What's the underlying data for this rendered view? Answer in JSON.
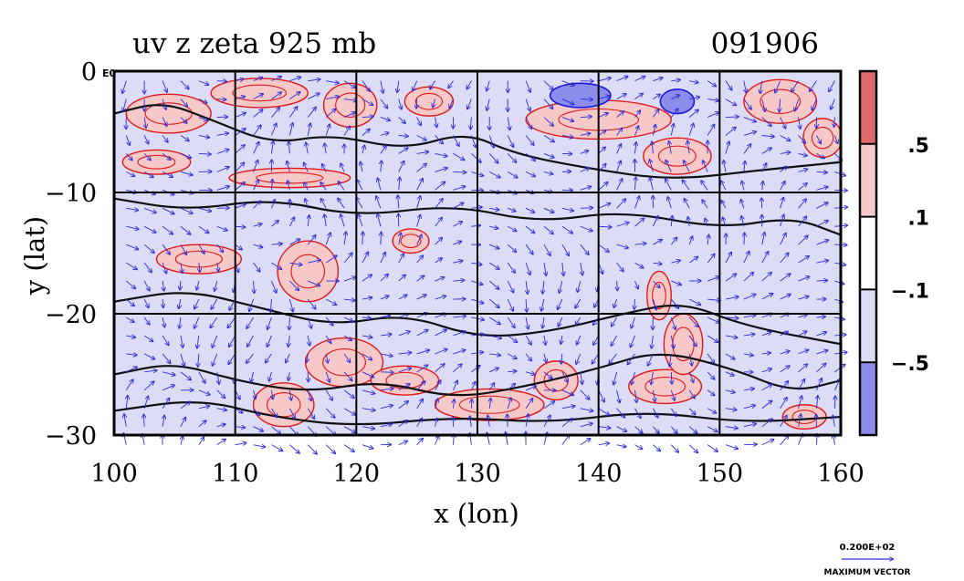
{
  "chart_data": {
    "type": "heatmap",
    "title": "uv z zeta 925 mb",
    "date_label": "091906",
    "xlabel": "x (lon)",
    "ylabel": "y (lat)",
    "xlim": [
      100,
      160
    ],
    "ylim": [
      -30,
      0
    ],
    "x_ticks": [
      "100",
      "110",
      "120",
      "130",
      "140",
      "150",
      "160"
    ],
    "y_ticks": [
      "0",
      "−10",
      "−20",
      "−30"
    ],
    "grid": true,
    "vector_field": true,
    "colorbar": {
      "labels": [
        ".5",
        ".1",
        "−.1",
        "−.5"
      ],
      "colors": [
        "#e06a6a",
        "#f7c8c8",
        "#ffffff",
        "#dcdcf7",
        "#8c8cea"
      ]
    },
    "series_colors": {
      "positive_contour": "#e01818",
      "negative_contour": "#1818e0",
      "height_contour": "#111111",
      "vectors": "#2a2ad8"
    },
    "reference_vector": {
      "value": "0.200E+02",
      "caption": "MAXIMUM VECTOR"
    },
    "overflow_label": "E0",
    "positive_vorticity_regions": [
      {
        "lon": 104.5,
        "lat": -3.5,
        "rx": 3.5,
        "ry": 1.6
      },
      {
        "lon": 112.0,
        "lat": -1.8,
        "rx": 4.0,
        "ry": 1.2
      },
      {
        "lon": 119.5,
        "lat": -2.8,
        "rx": 2.2,
        "ry": 1.8
      },
      {
        "lon": 126.0,
        "lat": -2.5,
        "rx": 2.0,
        "ry": 1.2
      },
      {
        "lon": 140.0,
        "lat": -4.0,
        "rx": 6.0,
        "ry": 1.6
      },
      {
        "lon": 146.5,
        "lat": -7.0,
        "rx": 2.8,
        "ry": 1.5
      },
      {
        "lon": 155.0,
        "lat": -2.5,
        "rx": 3.0,
        "ry": 1.8
      },
      {
        "lon": 158.5,
        "lat": -5.5,
        "rx": 1.6,
        "ry": 1.6
      },
      {
        "lon": 103.5,
        "lat": -7.5,
        "rx": 2.8,
        "ry": 1.0
      },
      {
        "lon": 114.5,
        "lat": -8.8,
        "rx": 5.0,
        "ry": 0.8
      },
      {
        "lon": 107.0,
        "lat": -15.5,
        "rx": 3.5,
        "ry": 1.2
      },
      {
        "lon": 116.0,
        "lat": -16.5,
        "rx": 2.5,
        "ry": 2.5
      },
      {
        "lon": 124.5,
        "lat": -14.0,
        "rx": 1.5,
        "ry": 1.0
      },
      {
        "lon": 119.0,
        "lat": -24.0,
        "rx": 3.2,
        "ry": 2.0
      },
      {
        "lon": 114.0,
        "lat": -27.5,
        "rx": 2.5,
        "ry": 1.8
      },
      {
        "lon": 124.0,
        "lat": -25.5,
        "rx": 2.8,
        "ry": 1.2
      },
      {
        "lon": 131.0,
        "lat": -27.5,
        "rx": 4.5,
        "ry": 1.3
      },
      {
        "lon": 136.5,
        "lat": -25.5,
        "rx": 1.8,
        "ry": 1.6
      },
      {
        "lon": 145.5,
        "lat": -26.0,
        "rx": 3.0,
        "ry": 1.4
      },
      {
        "lon": 147.0,
        "lat": -22.5,
        "rx": 1.6,
        "ry": 2.5
      },
      {
        "lon": 145.0,
        "lat": -18.5,
        "rx": 1.0,
        "ry": 2.0
      },
      {
        "lon": 157.0,
        "lat": -28.5,
        "rx": 1.8,
        "ry": 1.0
      }
    ],
    "negative_vorticity_regions": [
      {
        "lon": 146.5,
        "lat": -2.5,
        "rx": 1.4,
        "ry": 1.0
      },
      {
        "lon": 138.5,
        "lat": -2.0,
        "rx": 2.5,
        "ry": 1.0
      }
    ],
    "height_contours": [
      [
        [
          100,
          -3.5
        ],
        [
          104,
          -2.5
        ],
        [
          108,
          -4.0
        ],
        [
          113,
          -6.0
        ],
        [
          118,
          -5.2
        ],
        [
          124,
          -6.5
        ],
        [
          129,
          -5.0
        ],
        [
          133,
          -6.8
        ],
        [
          139,
          -8.0
        ],
        [
          146,
          -9.0
        ],
        [
          153,
          -8.2
        ],
        [
          160,
          -7.5
        ]
      ],
      [
        [
          100,
          -10.5
        ],
        [
          106,
          -11.5
        ],
        [
          113,
          -10.5
        ],
        [
          120,
          -12.0
        ],
        [
          128,
          -11.0
        ],
        [
          135,
          -12.5
        ],
        [
          142,
          -11.5
        ],
        [
          150,
          -13.0
        ],
        [
          156,
          -12.0
        ],
        [
          160,
          -13.5
        ]
      ],
      [
        [
          100,
          -19.0
        ],
        [
          106,
          -18.0
        ],
        [
          112,
          -19.5
        ],
        [
          118,
          -21.0
        ],
        [
          124,
          -20.0
        ],
        [
          130,
          -22.0
        ],
        [
          136,
          -21.5
        ],
        [
          142,
          -20.0
        ],
        [
          147,
          -19.0
        ],
        [
          152,
          -21.0
        ],
        [
          160,
          -22.5
        ]
      ],
      [
        [
          100,
          -25.0
        ],
        [
          105,
          -24.0
        ],
        [
          110,
          -25.5
        ],
        [
          116,
          -26.5
        ],
        [
          122,
          -25.5
        ],
        [
          128,
          -27.0
        ],
        [
          134,
          -26.0
        ],
        [
          140,
          -24.5
        ],
        [
          145,
          -23.0
        ],
        [
          151,
          -24.5
        ],
        [
          156,
          -26.5
        ],
        [
          160,
          -25.5
        ]
      ],
      [
        [
          100,
          -28.0
        ],
        [
          107,
          -27.0
        ],
        [
          113,
          -28.5
        ],
        [
          120,
          -29.3
        ],
        [
          128,
          -28.5
        ],
        [
          136,
          -29.0
        ],
        [
          144,
          -28.0
        ],
        [
          152,
          -29.0
        ],
        [
          160,
          -28.5
        ]
      ]
    ]
  }
}
